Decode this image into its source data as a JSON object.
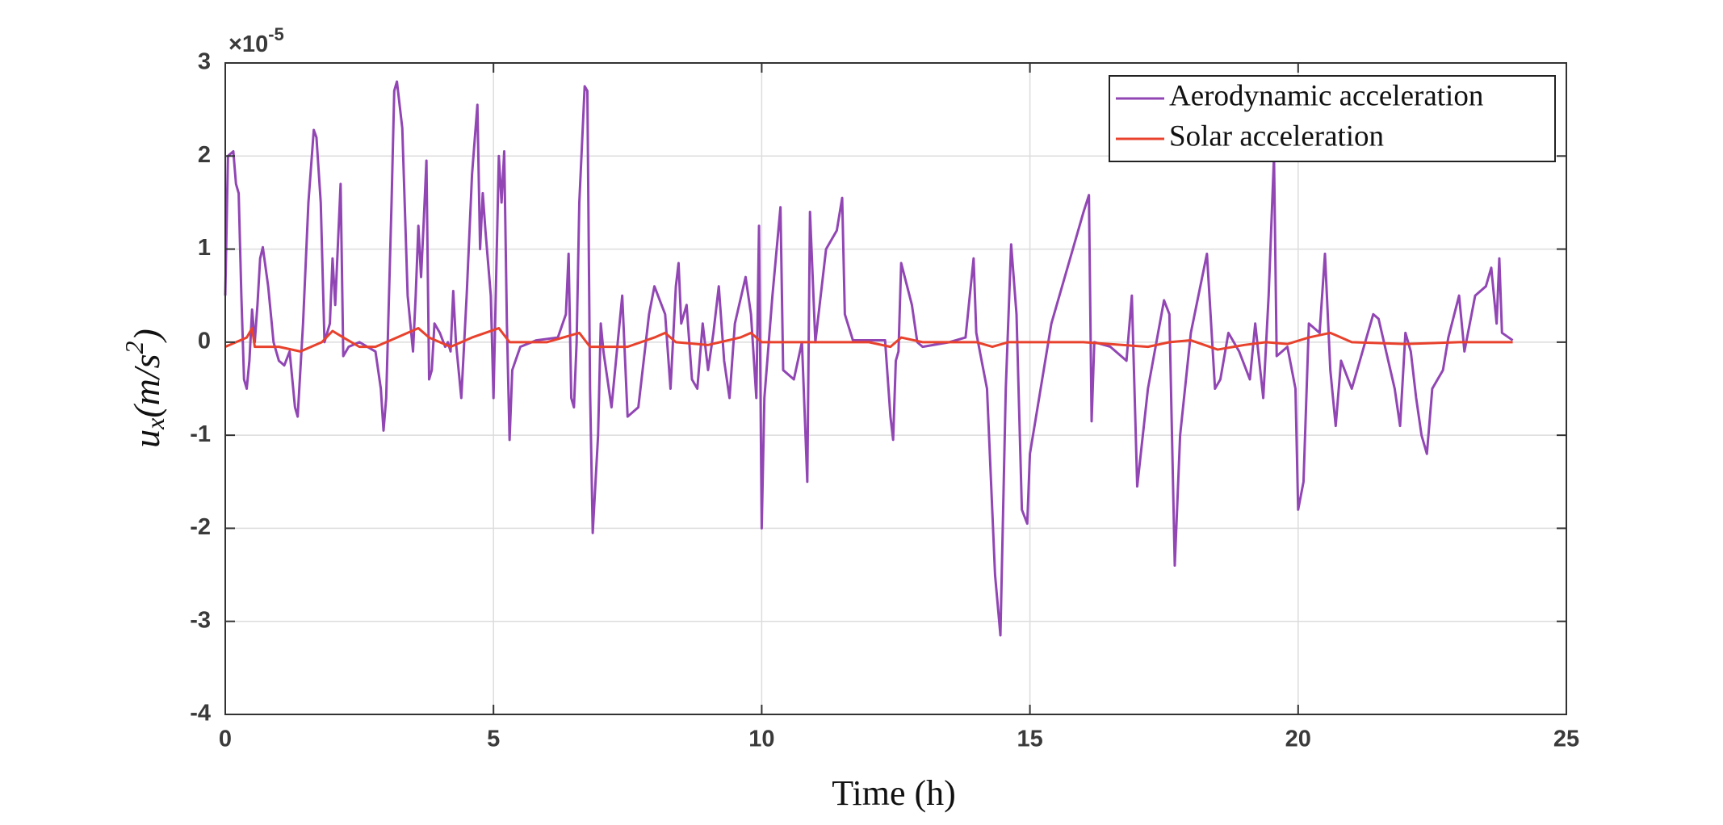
{
  "chart_data": {
    "type": "line",
    "xlabel": "Time (h)",
    "ylabel": {
      "base": "u",
      "sub": "x",
      "unit": "(m/s",
      "sup": "2",
      "close": ")"
    },
    "y_multiplier": {
      "base": "×10",
      "exponent": "-5"
    },
    "xlim": [
      0,
      25
    ],
    "xticks": [
      0,
      5,
      10,
      15,
      20,
      25
    ],
    "ylim": [
      -4,
      3
    ],
    "yticks": [
      -4,
      -3,
      -2,
      -1,
      0,
      1,
      2,
      3
    ],
    "grid": true,
    "legend": "northeast",
    "series": [
      {
        "name": "Aerodynamic acceleration",
        "color": "#9146b4",
        "x": [
          0,
          0.05,
          0.15,
          0.2,
          0.25,
          0.3,
          0.35,
          0.4,
          0.45,
          0.5,
          0.55,
          0.6,
          0.65,
          0.7,
          0.8,
          0.9,
          1.0,
          1.1,
          1.2,
          1.3,
          1.35,
          1.45,
          1.55,
          1.65,
          1.7,
          1.78,
          1.85,
          1.95,
          2.0,
          2.05,
          2.15,
          2.2,
          2.3,
          2.5,
          2.8,
          2.9,
          2.95,
          3.0,
          3.1,
          3.15,
          3.2,
          3.3,
          3.4,
          3.5,
          3.55,
          3.6,
          3.65,
          3.7,
          3.75,
          3.8,
          3.85,
          3.9,
          4.0,
          4.1,
          4.15,
          4.2,
          4.25,
          4.3,
          4.4,
          4.5,
          4.6,
          4.7,
          4.75,
          4.8,
          4.85,
          4.95,
          5.0,
          5.05,
          5.1,
          5.15,
          5.2,
          5.25,
          5.3,
          5.35,
          5.5,
          5.8,
          6.2,
          6.35,
          6.4,
          6.45,
          6.5,
          6.55,
          6.6,
          6.7,
          6.75,
          6.8,
          6.85,
          6.95,
          7.0,
          7.05,
          7.2,
          7.4,
          7.5,
          7.7,
          7.9,
          8.0,
          8.2,
          8.3,
          8.4,
          8.45,
          8.5,
          8.6,
          8.7,
          8.8,
          8.9,
          9.0,
          9.1,
          9.2,
          9.3,
          9.4,
          9.5,
          9.7,
          9.8,
          9.9,
          9.95,
          10.0,
          10.05,
          10.2,
          10.35,
          10.4,
          10.6,
          10.75,
          10.85,
          10.9,
          11.0,
          11.2,
          11.4,
          11.5,
          11.55,
          11.7,
          12.3,
          12.4,
          12.45,
          12.5,
          12.55,
          12.6,
          12.8,
          12.9,
          13.0,
          13.5,
          13.8,
          13.95,
          14.0,
          14.2,
          14.35,
          14.45,
          14.55,
          14.65,
          14.75,
          14.85,
          14.95,
          15.0,
          15.2,
          15.4,
          15.7,
          16.0,
          16.1,
          16.15,
          16.2,
          16.5,
          16.8,
          16.9,
          17.0,
          17.2,
          17.5,
          17.6,
          17.7,
          17.8,
          18.0,
          18.3,
          18.45,
          18.55,
          18.7,
          18.9,
          19.1,
          19.2,
          19.35,
          19.45,
          19.55,
          19.6,
          19.8,
          19.95,
          20.0,
          20.1,
          20.2,
          20.4,
          20.5,
          20.6,
          20.7,
          20.8,
          21.0,
          21.2,
          21.4,
          21.5,
          21.8,
          21.9,
          22.0,
          22.1,
          22.2,
          22.3,
          22.4,
          22.5,
          22.7,
          22.8,
          23.0,
          23.1,
          23.3,
          23.5,
          23.6,
          23.7,
          23.75,
          23.8,
          24.0
        ],
        "values": [
          0.5,
          2.0,
          2.05,
          1.7,
          1.6,
          0.5,
          -0.4,
          -0.5,
          -0.2,
          0.35,
          0.0,
          0.4,
          0.9,
          1.02,
          0.6,
          0.0,
          -0.2,
          -0.25,
          -0.1,
          -0.7,
          -0.8,
          0.2,
          1.5,
          2.28,
          2.2,
          1.5,
          0.0,
          0.2,
          0.9,
          0.4,
          1.7,
          -0.15,
          -0.05,
          0.0,
          -0.1,
          -0.5,
          -0.95,
          -0.6,
          1.5,
          2.7,
          2.8,
          2.3,
          0.5,
          -0.1,
          0.5,
          1.25,
          0.7,
          1.3,
          1.95,
          -0.4,
          -0.3,
          0.2,
          0.1,
          -0.05,
          0.0,
          -0.1,
          0.55,
          0.0,
          -0.6,
          0.5,
          1.8,
          2.55,
          1.0,
          1.6,
          1.2,
          0.5,
          -0.6,
          0.7,
          2.0,
          1.5,
          2.05,
          0.2,
          -1.05,
          -0.3,
          -0.05,
          0.02,
          0.05,
          0.3,
          0.95,
          -0.6,
          -0.7,
          0.0,
          1.5,
          2.75,
          2.7,
          -0.5,
          -2.05,
          -1.0,
          0.2,
          -0.1,
          -0.7,
          0.5,
          -0.8,
          -0.7,
          0.3,
          0.6,
          0.3,
          -0.5,
          0.6,
          0.85,
          0.2,
          0.4,
          -0.4,
          -0.5,
          0.2,
          -0.3,
          0.1,
          0.6,
          -0.2,
          -0.6,
          0.2,
          0.7,
          0.3,
          -0.6,
          1.25,
          -2.0,
          -0.6,
          0.5,
          1.45,
          -0.3,
          -0.4,
          0.0,
          -1.5,
          1.4,
          0.0,
          1.0,
          1.2,
          1.55,
          0.3,
          0.02,
          0.02,
          -0.8,
          -1.05,
          -0.2,
          -0.1,
          0.85,
          0.4,
          0.0,
          -0.05,
          0.0,
          0.05,
          0.9,
          0.1,
          -0.5,
          -2.5,
          -3.15,
          -0.5,
          1.05,
          0.3,
          -1.8,
          -1.95,
          -1.2,
          -0.5,
          0.2,
          0.8,
          1.4,
          1.58,
          -0.85,
          0.0,
          -0.05,
          -0.2,
          0.5,
          -1.55,
          -0.5,
          0.45,
          0.3,
          -2.4,
          -1.0,
          0.1,
          0.95,
          -0.5,
          -0.4,
          0.1,
          -0.1,
          -0.4,
          0.2,
          -0.6,
          0.5,
          2.0,
          -0.15,
          -0.05,
          -0.5,
          -1.8,
          -1.5,
          0.2,
          0.1,
          0.95,
          -0.3,
          -0.9,
          -0.2,
          -0.5,
          -0.1,
          0.3,
          0.25,
          -0.5,
          -0.9,
          0.1,
          -0.1,
          -0.6,
          -1.0,
          -1.2,
          -0.5,
          -0.3,
          0.05,
          0.5,
          -0.1,
          0.5,
          0.6,
          0.8,
          0.2,
          0.9,
          0.1,
          0.02
        ]
      },
      {
        "name": "Solar acceleration",
        "color": "#e8412c",
        "x": [
          0,
          0.2,
          0.4,
          0.5,
          0.55,
          1.0,
          1.4,
          1.8,
          2.0,
          2.2,
          2.5,
          2.8,
          3.2,
          3.6,
          3.8,
          4.2,
          4.6,
          5.1,
          5.3,
          6.0,
          6.6,
          6.8,
          7.5,
          8.0,
          8.2,
          8.4,
          9.0,
          9.6,
          9.8,
          10.0,
          11.0,
          12.0,
          12.4,
          12.6,
          13.0,
          14.0,
          14.3,
          14.6,
          16.0,
          17.2,
          17.6,
          18.0,
          18.5,
          19.0,
          19.4,
          19.8,
          20.2,
          20.6,
          21.0,
          22.0,
          23.0,
          24.0
        ],
        "values": [
          -0.05,
          0.0,
          0.05,
          0.15,
          -0.05,
          -0.05,
          -0.1,
          0.0,
          0.12,
          0.05,
          -0.05,
          -0.05,
          0.05,
          0.15,
          0.05,
          -0.05,
          0.05,
          0.15,
          0.0,
          0.0,
          0.1,
          -0.05,
          -0.05,
          0.05,
          0.1,
          0.0,
          -0.03,
          0.05,
          0.1,
          0.0,
          0.0,
          0.0,
          -0.05,
          0.05,
          0.0,
          0.0,
          -0.05,
          0.0,
          0.0,
          -0.05,
          0.0,
          0.02,
          -0.08,
          -0.03,
          0.0,
          -0.02,
          0.05,
          0.1,
          0.0,
          -0.02,
          0.0,
          0.0
        ]
      }
    ]
  }
}
